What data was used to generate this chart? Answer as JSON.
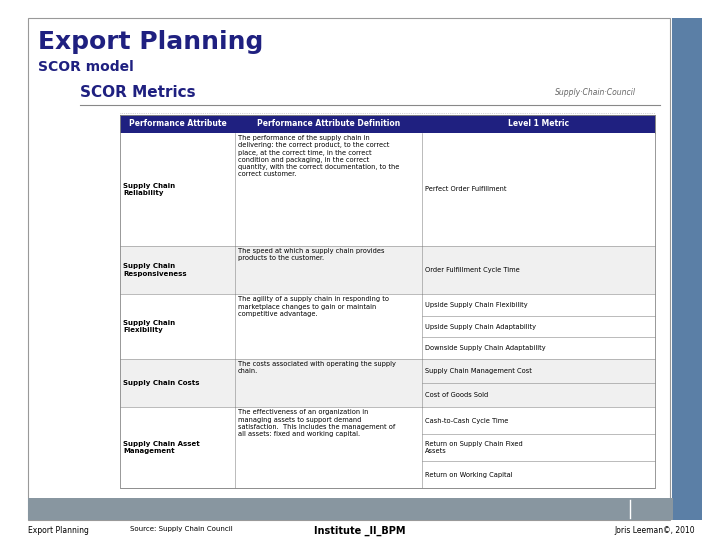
{
  "title": "Export Planning",
  "subtitle": "SCOR model",
  "section_title": "SCOR Metrics",
  "bg_color": "#ffffff",
  "header_bg": "#1f2080",
  "title_color": "#1f2080",
  "border_color": "#aaaaaa",
  "footer_bar_color": "#8896a0",
  "right_bar_color": "#5b7fa6",
  "table_headers": [
    "Performance Attribute",
    "Performance Attribute Definition",
    "Level 1 Metric"
  ],
  "table_rows": [
    {
      "attr": "Supply Chain\nReliability",
      "definition": "The performance of the supply chain in\ndelivering: the correct product, to the correct\nplace, at the correct time, in the correct\ncondition and packaging, in the correct\nquantity, with the correct documentation, to the\ncorrect customer.",
      "metrics": [
        "Perfect Order Fulfillment"
      ]
    },
    {
      "attr": "Supply Chain\nResponsiveness",
      "definition": "The speed at which a supply chain provides\nproducts to the customer.",
      "metrics": [
        "Order Fulfillment Cycle Time"
      ]
    },
    {
      "attr": "Supply Chain\nFlexibility",
      "definition": "The agility of a supply chain in responding to\nmarketplace changes to gain or maintain\ncompetitive advantage.",
      "metrics": [
        "Upside Supply Chain Flexibility",
        "Upside Supply Chain Adaptability",
        "Downside Supply Chain Adaptability"
      ]
    },
    {
      "attr": "Supply Chain Costs",
      "definition": "The costs associated with operating the supply\nchain.",
      "metrics": [
        "Supply Chain Management Cost",
        "Cost of Goods Sold"
      ]
    },
    {
      "attr": "Supply Chain Asset\nManagement",
      "definition": "The effectiveness of an organization in\nmanaging assets to support demand\nsatisfaction.  This includes the management of\nall assets: fixed and working capital.",
      "metrics": [
        "Cash-to-Cash Cycle Time",
        "Return on Supply Chain Fixed\nAssets",
        "Return on Working Capital"
      ]
    }
  ],
  "footer_left": "Export Planning",
  "footer_center": "Institute _II_BPM",
  "footer_right": "Joris Leeman©, 2010",
  "footer_source": "Source: Supply Chain Council"
}
